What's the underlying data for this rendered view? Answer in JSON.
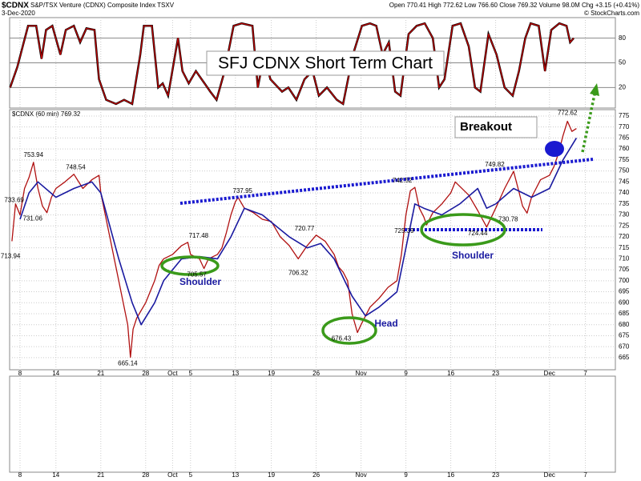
{
  "chart_data": {
    "type": "price",
    "symbol": "$CDNX",
    "name": "S&P/TSX Venture (CDNX) Composite Index  TSXV",
    "date": "3-Dec-2020",
    "quote": "Open 770.41  High 772.62  Low 766.60  Close 769.32  Volume 98.0M  Chg +3.15 (+0.41%)",
    "credit": "© StockCharts.com",
    "panel_label": "$CDNX (60 min) 769.32",
    "title": "SFJ CDNX Short Term Chart",
    "annotations": [
      "Breakout",
      "Shoulder",
      "Head",
      "Shoulder"
    ],
    "xlim": [
      -1.16,
      66.34
    ],
    "xticks": [
      {
        "value": 0,
        "label": "8"
      },
      {
        "value": 4,
        "label": "14"
      },
      {
        "value": 9,
        "label": "21"
      },
      {
        "value": 14,
        "label": "28"
      },
      {
        "value": 17,
        "label": "Oct"
      },
      {
        "value": 19,
        "label": "5"
      },
      {
        "value": 24,
        "label": "13"
      },
      {
        "value": 28,
        "label": "19"
      },
      {
        "value": 33,
        "label": "26"
      },
      {
        "value": 38,
        "label": "Nov"
      },
      {
        "value": 43,
        "label": "9"
      },
      {
        "value": 48,
        "label": "16"
      },
      {
        "value": 53,
        "label": "23"
      },
      {
        "value": 59,
        "label": "Dec"
      },
      {
        "value": 63,
        "label": "7"
      }
    ],
    "ylim": [
      659.5,
      777.9
    ],
    "yticks": [
      665,
      670,
      675,
      680,
      685,
      690,
      695,
      700,
      705,
      710,
      715,
      720,
      725,
      730,
      735,
      740,
      745,
      750,
      755,
      760,
      765,
      770,
      775
    ],
    "osc_ylim": [
      -5,
      105
    ],
    "osc_yticks": [
      20,
      50,
      80
    ],
    "series": [
      {
        "name": "Price",
        "color": "#b01010",
        "x": [
          -0.9,
          -0.5,
          0,
          0.5,
          1,
          1.5,
          2,
          2.5,
          3,
          3.5,
          4,
          5,
          6,
          7,
          8,
          8.8,
          9,
          9.5,
          10,
          10.5,
          11,
          11.5,
          12,
          12.3,
          12.6,
          13,
          14,
          15,
          15.5,
          16,
          17,
          18,
          18.7,
          19,
          20,
          20.5,
          21,
          22,
          22.5,
          23,
          23.5,
          24,
          24.3,
          25,
          26,
          27,
          28,
          29,
          30,
          31,
          32,
          33,
          34,
          35,
          35.5,
          36,
          36.5,
          37,
          37.6,
          38,
          38.5,
          39,
          40,
          41,
          42,
          42.5,
          43,
          43.5,
          44,
          44.5,
          45,
          45.3,
          46,
          47,
          48,
          48.5,
          49,
          50,
          51,
          52,
          53,
          54,
          55,
          55.5,
          56,
          56.5,
          57,
          58,
          59,
          59.5,
          60,
          60.5,
          61,
          61.5,
          62
        ],
        "values": [
          718,
          735,
          730,
          742,
          747,
          753.94,
          742,
          734,
          731,
          738,
          742,
          745,
          748.5,
          742,
          746,
          748,
          740,
          730,
          720,
          710,
          700,
          690,
          680,
          665.14,
          678,
          683,
          690,
          700,
          707,
          710,
          712,
          716,
          717.48,
          712,
          710,
          705.6,
          710,
          712,
          715,
          722,
          730,
          736,
          737.95,
          733,
          731,
          728,
          727,
          720,
          716,
          710,
          716,
          720.77,
          718,
          712,
          706.32,
          704,
          700,
          685,
          676.43,
          680,
          684,
          688,
          692,
          697,
          700,
          712,
          730,
          741,
          742.52,
          733,
          729,
          725.39,
          731,
          735,
          740,
          745,
          743,
          739,
          732,
          724.44,
          733,
          742,
          749.82,
          742,
          734,
          730.78,
          738,
          746,
          748,
          752,
          758,
          766,
          772.62,
          768,
          769.32
        ]
      },
      {
        "name": "Moving Average",
        "color": "#1a1aa0",
        "x": [
          0,
          1,
          2,
          4,
          6,
          8,
          9,
          11,
          12.5,
          13.5,
          15,
          16,
          18,
          20,
          22,
          23.5,
          25,
          27,
          30,
          32,
          33.5,
          35,
          37,
          38.5,
          40,
          42,
          43,
          44,
          45,
          47,
          49,
          51,
          52,
          53,
          55,
          57,
          59,
          60.5,
          62
        ],
        "values": [
          728,
          740,
          745,
          738,
          742,
          745,
          740,
          710,
          690,
          680,
          690,
          700,
          710,
          711,
          710,
          720,
          733,
          730,
          720,
          715,
          717,
          710,
          693,
          684,
          688,
          695,
          715,
          735,
          733,
          730,
          735,
          742,
          733,
          735,
          742,
          738,
          742,
          755,
          765
        ]
      }
    ],
    "oscillator": {
      "name": "Oscillator",
      "color": "#c00000",
      "x": [
        -1.1,
        -0.3,
        0.3,
        0.9,
        1.8,
        2.4,
        2.9,
        3.6,
        4.5,
        5.1,
        6,
        6.7,
        7.4,
        8.3,
        8.8,
        9.6,
        10.7,
        11.6,
        12.5,
        13.4,
        13.8,
        14.7,
        15.4,
        15.9,
        16.5,
        17.6,
        18.1,
        18.8,
        19.6,
        21.2,
        21.9,
        22.8,
        23.8,
        24.7,
        25.9,
        26.5,
        27.2,
        27.9,
        29.2,
        29.9,
        30.8,
        31.7,
        32.6,
        33.3,
        34.2,
        35.3,
        36,
        37.1,
        38.1,
        39,
        39.7,
        40.4,
        41.1,
        41.8,
        42.4,
        43.3,
        44.2,
        45.1,
        46,
        46.7,
        47.3,
        48.2,
        49.1,
        50,
        50.7,
        51.3,
        52.2,
        53.1,
        54,
        54.9,
        55.6,
        56.3,
        56.9,
        57.8,
        58.5,
        59.2,
        60.1,
        60.9,
        61.3,
        61.7
      ],
      "values": [
        20,
        45,
        70,
        95,
        95,
        55,
        90,
        95,
        60,
        90,
        95,
        75,
        92,
        90,
        30,
        5,
        0,
        5,
        0,
        60,
        95,
        95,
        20,
        25,
        10,
        80,
        40,
        25,
        40,
        15,
        5,
        40,
        95,
        98,
        95,
        20,
        60,
        30,
        15,
        20,
        5,
        30,
        40,
        10,
        20,
        5,
        0,
        60,
        95,
        98,
        95,
        60,
        75,
        15,
        10,
        85,
        95,
        98,
        80,
        20,
        30,
        95,
        98,
        70,
        20,
        15,
        85,
        60,
        20,
        10,
        40,
        80,
        98,
        95,
        40,
        90,
        98,
        95,
        75,
        80
      ]
    },
    "price_labels": [
      {
        "x": 1.5,
        "value": 753.94
      },
      {
        "x": 6.2,
        "value": 748.54
      },
      {
        "x": -0.3,
        "value": 733.69
      },
      {
        "x": 1.4,
        "value": 731.06
      },
      {
        "x": -0.7,
        "value": 713.94
      },
      {
        "x": 12,
        "value": 665.14
      },
      {
        "x": 19.9,
        "value": 717.48
      },
      {
        "x": 19.7,
        "value": 705.57
      },
      {
        "x": 24.8,
        "value": 737.95
      },
      {
        "x": 31.7,
        "value": 720.77
      },
      {
        "x": 31,
        "value": 706.32
      },
      {
        "x": 35.8,
        "value": 676.43
      },
      {
        "x": 42.6,
        "value": 742.52
      },
      {
        "x": 42.8,
        "value": 725.39
      },
      {
        "x": 52.9,
        "value": 749.82
      },
      {
        "x": 54.4,
        "value": 730.78
      },
      {
        "x": 51,
        "value": 724.44
      },
      {
        "x": 61,
        "value": 772.62
      }
    ]
  }
}
